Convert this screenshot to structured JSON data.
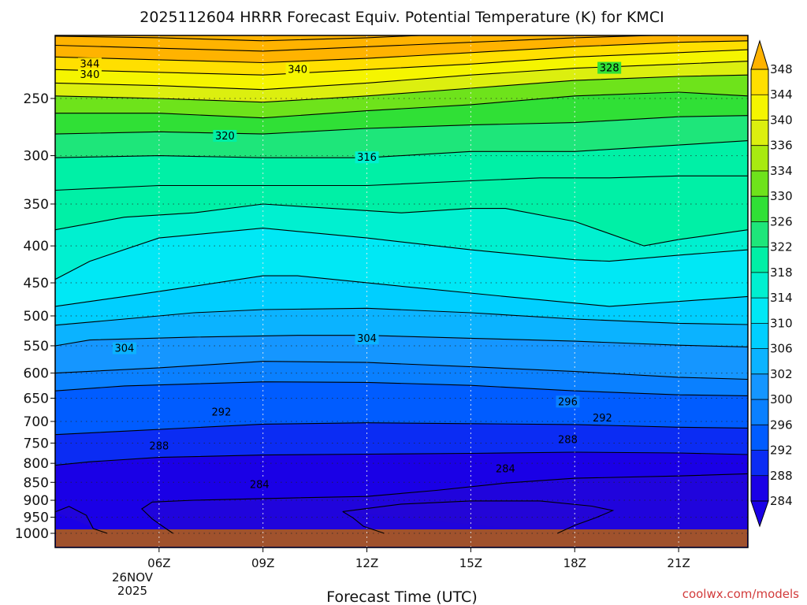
{
  "chart_data": {
    "type": "heatmap",
    "title": "2025112604 HRRR Forecast Equiv. Potential Temperature (K) for KMCI",
    "xlabel": "Forecast Time (UTC)",
    "ylabel": "",
    "x_range_hours": [
      3,
      23
    ],
    "y_range_hpa": [
      1000,
      200
    ],
    "y_scale": "log-pressure",
    "x_ticks": [
      {
        "hour": 6,
        "label": "06Z"
      },
      {
        "hour": 9,
        "label": "09Z"
      },
      {
        "hour": 12,
        "label": "12Z"
      },
      {
        "hour": 15,
        "label": "15Z"
      },
      {
        "hour": 18,
        "label": "18Z"
      },
      {
        "hour": 21,
        "label": "21Z"
      }
    ],
    "date_label": [
      "26NOV",
      "2025"
    ],
    "y_ticks": [
      250,
      300,
      350,
      400,
      450,
      500,
      550,
      600,
      650,
      700,
      750,
      800,
      850,
      900,
      950,
      1000
    ],
    "grid": true,
    "colorbar": {
      "levels": [
        284,
        288,
        292,
        296,
        300,
        302,
        306,
        310,
        314,
        318,
        322,
        326,
        330,
        334,
        336,
        340,
        344,
        348
      ],
      "colors": [
        "#1a00e6",
        "#0b2cf3",
        "#005cff",
        "#0a80ff",
        "#1596ff",
        "#0bb3ff",
        "#00cfff",
        "#00e8f5",
        "#00f0d0",
        "#00f0a6",
        "#1ee67a",
        "#30e036",
        "#6ee31b",
        "#a8ea10",
        "#dcef0f",
        "#f5f500",
        "#ffdf00",
        "#ffb300"
      ],
      "extend": "both"
    },
    "ground": {
      "color": "#a0522d",
      "below_hpa": 1000
    },
    "contour_lines": [
      {
        "value": 284,
        "points": [
          [
            3,
            934
          ],
          [
            3.4,
            918
          ],
          [
            3.9,
            944
          ],
          [
            4.1,
            985
          ],
          [
            4.5,
            1000
          ]
        ]
      },
      {
        "value": 284,
        "points": [
          [
            6.4,
            1000
          ],
          [
            6.2,
            985
          ],
          [
            5.8,
            955
          ],
          [
            5.5,
            925
          ],
          [
            5.8,
            905
          ],
          [
            7,
            900
          ],
          [
            10,
            893
          ],
          [
            12,
            889
          ],
          [
            14,
            872
          ],
          [
            16,
            852
          ],
          [
            18,
            839
          ],
          [
            21,
            833
          ],
          [
            23,
            827
          ]
        ]
      },
      {
        "value": 284,
        "points": [
          [
            11.3,
            933
          ],
          [
            11.6,
            952
          ],
          [
            11.9,
            978
          ],
          [
            12.5,
            1000
          ]
        ]
      },
      {
        "value": 284,
        "points": [
          [
            11.3,
            933
          ],
          [
            13,
            911
          ],
          [
            15,
            902
          ],
          [
            17,
            902
          ],
          [
            18.5,
            917
          ],
          [
            19.1,
            930
          ],
          [
            18.6,
            952
          ],
          [
            18,
            975
          ],
          [
            17.5,
            1000
          ]
        ]
      },
      {
        "value": 288,
        "points": [
          [
            3,
            805
          ],
          [
            4,
            796
          ],
          [
            6,
            785
          ],
          [
            9,
            779
          ],
          [
            12,
            777
          ],
          [
            15,
            775
          ],
          [
            18,
            772
          ],
          [
            21,
            774
          ],
          [
            23,
            778
          ]
        ]
      },
      {
        "value": 292,
        "points": [
          [
            3,
            730
          ],
          [
            5,
            722
          ],
          [
            9,
            706
          ],
          [
            12,
            703
          ],
          [
            15,
            705
          ],
          [
            18,
            707
          ],
          [
            21,
            713
          ],
          [
            23,
            715
          ]
        ]
      },
      {
        "value": 296,
        "points": [
          [
            3,
            635
          ],
          [
            5,
            625
          ],
          [
            9,
            617
          ],
          [
            12,
            618
          ],
          [
            15,
            624
          ],
          [
            18,
            635
          ],
          [
            21,
            643
          ],
          [
            23,
            645
          ]
        ]
      },
      {
        "value": 300,
        "points": [
          [
            3,
            600
          ],
          [
            6,
            590
          ],
          [
            9,
            578
          ],
          [
            12,
            580
          ],
          [
            15,
            588
          ],
          [
            18,
            597
          ],
          [
            21,
            608
          ],
          [
            23,
            612
          ]
        ]
      },
      {
        "value": 304,
        "points": [
          [
            3,
            550
          ],
          [
            4,
            540
          ],
          [
            7,
            535
          ],
          [
            10,
            532
          ],
          [
            12,
            532
          ],
          [
            15,
            537
          ],
          [
            18,
            542
          ],
          [
            21,
            549
          ],
          [
            23,
            552
          ]
        ]
      },
      {
        "value": 306,
        "points": [
          [
            3,
            515
          ],
          [
            5,
            505
          ],
          [
            7,
            495
          ],
          [
            9,
            490
          ],
          [
            12,
            488
          ],
          [
            15,
            495
          ],
          [
            18,
            505
          ],
          [
            21,
            512
          ],
          [
            23,
            514
          ]
        ]
      },
      {
        "value": 310,
        "points": [
          [
            3,
            485
          ],
          [
            5,
            470
          ],
          [
            7,
            455
          ],
          [
            9,
            440
          ],
          [
            10,
            440
          ],
          [
            13,
            455
          ],
          [
            16,
            470
          ],
          [
            19,
            485
          ],
          [
            23,
            470
          ]
        ]
      },
      {
        "value": 314,
        "points": [
          [
            3,
            445
          ],
          [
            4,
            420
          ],
          [
            6,
            390
          ],
          [
            9,
            378
          ],
          [
            12,
            390
          ],
          [
            15,
            405
          ],
          [
            18,
            418
          ],
          [
            19,
            420
          ],
          [
            21,
            412
          ],
          [
            23,
            405
          ]
        ]
      },
      {
        "value": 318,
        "points": [
          [
            3,
            380
          ],
          [
            5,
            365
          ],
          [
            7,
            360
          ],
          [
            9,
            350
          ],
          [
            11,
            355
          ],
          [
            13,
            360
          ],
          [
            15,
            355
          ],
          [
            16,
            355
          ],
          [
            18,
            370
          ],
          [
            20,
            400
          ],
          [
            21,
            392
          ],
          [
            23,
            380
          ]
        ]
      },
      {
        "value": 320,
        "points": [
          [
            3,
            335
          ],
          [
            6,
            330
          ],
          [
            9,
            330
          ],
          [
            12,
            330
          ],
          [
            15,
            325
          ],
          [
            17,
            322
          ],
          [
            19,
            322
          ],
          [
            21,
            320
          ],
          [
            23,
            320
          ]
        ]
      },
      {
        "value": 324,
        "points": [
          [
            3,
            302
          ],
          [
            6,
            300
          ],
          [
            9,
            302
          ],
          [
            12,
            302
          ],
          [
            15,
            296
          ],
          [
            18,
            296
          ],
          [
            21,
            290
          ],
          [
            23,
            286
          ]
        ]
      },
      {
        "value": 328,
        "points": [
          [
            3,
            280
          ],
          [
            6,
            278
          ],
          [
            9,
            280
          ],
          [
            12,
            275
          ],
          [
            15,
            272
          ],
          [
            18,
            270
          ],
          [
            21,
            265
          ],
          [
            23,
            264
          ]
        ]
      },
      {
        "value": 332,
        "points": [
          [
            3,
            262
          ],
          [
            6,
            262
          ],
          [
            9,
            266
          ],
          [
            12,
            260
          ],
          [
            15,
            255
          ],
          [
            18,
            248
          ],
          [
            21,
            245
          ],
          [
            23,
            248
          ]
        ]
      },
      {
        "value": 336,
        "points": [
          [
            3,
            248
          ],
          [
            6,
            250
          ],
          [
            9,
            253
          ],
          [
            12,
            248
          ],
          [
            15,
            242
          ],
          [
            18,
            236
          ],
          [
            21,
            233
          ],
          [
            23,
            232
          ]
        ]
      },
      {
        "value": 340,
        "points": [
          [
            3,
            238
          ],
          [
            6,
            240
          ],
          [
            9,
            243
          ],
          [
            12,
            238
          ],
          [
            15,
            232
          ],
          [
            18,
            227
          ],
          [
            21,
            224
          ],
          [
            23,
            222
          ]
        ]
      },
      {
        "value": 344,
        "points": [
          [
            3,
            228
          ],
          [
            6,
            230
          ],
          [
            9,
            232
          ],
          [
            12,
            228
          ],
          [
            15,
            224
          ],
          [
            18,
            219
          ],
          [
            21,
            216
          ],
          [
            23,
            214
          ]
        ]
      },
      {
        "value": 348,
        "points": [
          [
            3,
            219
          ],
          [
            6,
            221
          ],
          [
            9,
            223
          ],
          [
            12,
            220
          ],
          [
            15,
            216
          ],
          [
            18,
            212
          ],
          [
            21,
            209
          ],
          [
            23,
            208
          ]
        ]
      },
      {
        "value": 352,
        "points": [
          [
            3,
            211
          ],
          [
            6,
            213
          ],
          [
            9,
            215
          ],
          [
            12,
            212
          ],
          [
            15,
            209
          ],
          [
            18,
            206
          ],
          [
            21,
            204
          ],
          [
            23,
            203
          ]
        ]
      },
      {
        "value": 356,
        "points": [
          [
            3,
            205
          ],
          [
            6,
            206
          ],
          [
            9,
            208
          ],
          [
            12,
            206
          ],
          [
            15,
            203
          ],
          [
            18,
            201
          ],
          [
            21,
            200
          ],
          [
            23,
            200
          ]
        ]
      }
    ],
    "contour_labels": [
      {
        "text": "344",
        "hour": 4.0,
        "hpa": 224
      },
      {
        "text": "340",
        "hour": 4.0,
        "hpa": 232
      },
      {
        "text": "340",
        "hour": 10.0,
        "hpa": 228
      },
      {
        "text": "328",
        "hour": 19.0,
        "hpa": 227
      },
      {
        "text": "320",
        "hour": 7.9,
        "hpa": 282
      },
      {
        "text": "316",
        "hour": 12.0,
        "hpa": 302
      },
      {
        "text": "304",
        "hour": 5.0,
        "hpa": 555
      },
      {
        "text": "304",
        "hour": 12.0,
        "hpa": 538
      },
      {
        "text": "296",
        "hour": 17.8,
        "hpa": 658
      },
      {
        "text": "292",
        "hour": 7.8,
        "hpa": 680
      },
      {
        "text": "292",
        "hour": 18.8,
        "hpa": 693
      },
      {
        "text": "288",
        "hour": 6.0,
        "hpa": 758
      },
      {
        "text": "288",
        "hour": 17.8,
        "hpa": 743
      },
      {
        "text": "284",
        "hour": 8.9,
        "hpa": 857
      },
      {
        "text": "284",
        "hour": 16.0,
        "hpa": 815
      }
    ]
  },
  "credit": "coolwx.com/models"
}
